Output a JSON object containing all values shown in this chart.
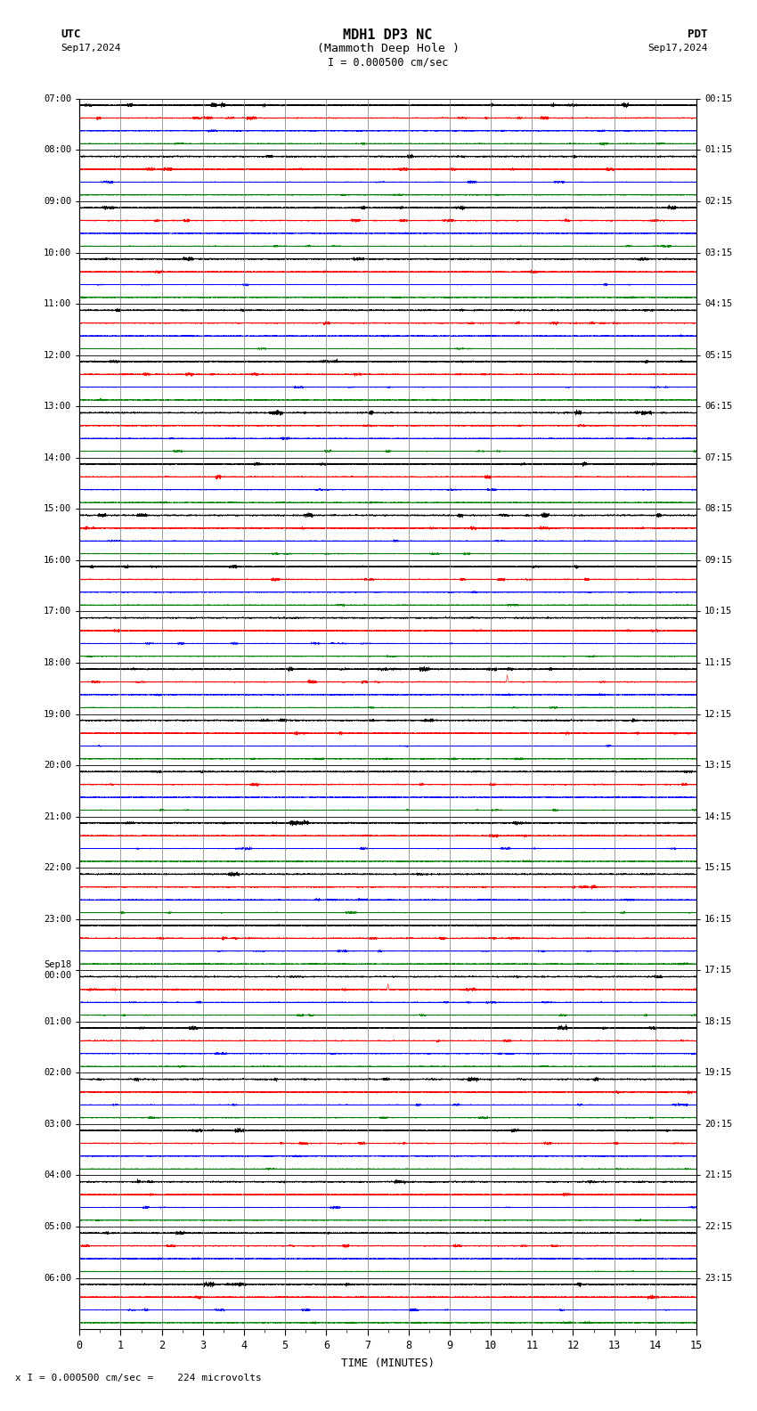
{
  "title_line1": "MDH1 DP3 NC",
  "title_line2": "(Mammoth Deep Hole )",
  "scale_label": "I = 0.000500 cm/sec",
  "utc_label": "UTC",
  "pdt_label": "PDT",
  "date_left": "Sep17,2024",
  "date_right": "Sep17,2024",
  "bottom_label": "TIME (MINUTES)",
  "bottom_note": "x I = 0.000500 cm/sec =    224 microvolts",
  "left_times_utc": [
    "07:00",
    "08:00",
    "09:00",
    "10:00",
    "11:00",
    "12:00",
    "13:00",
    "14:00",
    "15:00",
    "16:00",
    "17:00",
    "18:00",
    "19:00",
    "20:00",
    "21:00",
    "22:00",
    "23:00",
    "Sep18\n00:00",
    "01:00",
    "02:00",
    "03:00",
    "04:00",
    "05:00",
    "06:00"
  ],
  "right_times_pdt": [
    "00:15",
    "01:15",
    "02:15",
    "03:15",
    "04:15",
    "05:15",
    "06:15",
    "07:15",
    "08:15",
    "09:15",
    "10:15",
    "11:15",
    "12:15",
    "13:15",
    "14:15",
    "15:15",
    "16:15",
    "17:15",
    "18:15",
    "19:15",
    "20:15",
    "21:15",
    "22:15",
    "23:15"
  ],
  "n_rows": 24,
  "n_minutes": 15,
  "traces_per_row": 4,
  "colors_order": [
    "#000000",
    "#ff0000",
    "#0000ff",
    "#008000"
  ],
  "noise_amp": [
    0.018,
    0.014,
    0.01,
    0.01
  ],
  "background": "#ffffff",
  "grid_color": "#888888",
  "spike_events": [
    {
      "row": 11,
      "trace": 1,
      "minute": 10.4,
      "amp": 0.55
    },
    {
      "row": 17,
      "trace": 1,
      "minute": 7.5,
      "amp": 0.45
    }
  ]
}
